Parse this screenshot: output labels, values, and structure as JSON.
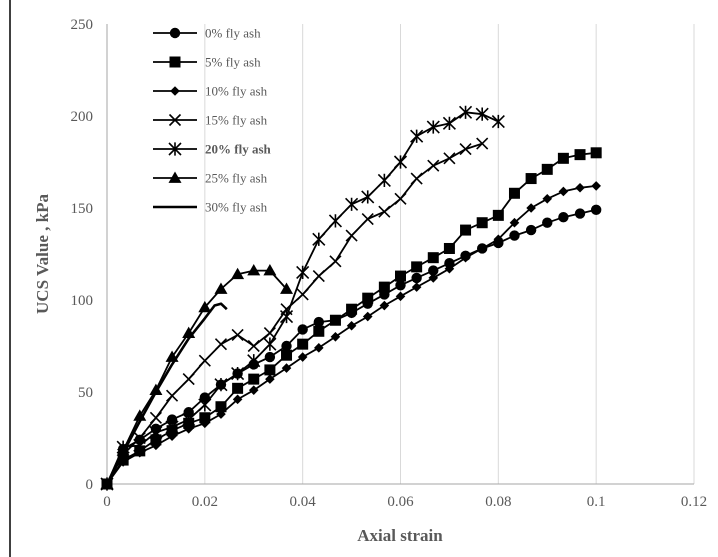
{
  "chart_data": {
    "type": "line",
    "title": "",
    "xlabel": "Axial strain",
    "ylabel": "UCS Value , kPa",
    "xlim": [
      0,
      0.12
    ],
    "ylim": [
      0,
      250
    ],
    "xticks": [
      "0",
      "0.02",
      "0.04",
      "0.06",
      "0.08",
      "0.1",
      "0.12"
    ],
    "yticks": [
      "0",
      "50",
      "100",
      "150",
      "200",
      "250"
    ],
    "grid": "vertical",
    "legend_position": "top-left",
    "series": [
      {
        "name": "0% fly ash",
        "marker": "circle",
        "bold": false,
        "x": [
          0,
          0.0033,
          0.0067,
          0.01,
          0.0133,
          0.0167,
          0.02,
          0.0233,
          0.0267,
          0.03,
          0.0333,
          0.0367,
          0.04,
          0.0433,
          0.0467,
          0.05,
          0.0533,
          0.0567,
          0.06,
          0.0633,
          0.0667,
          0.07,
          0.0733,
          0.0767,
          0.08,
          0.0833,
          0.0867,
          0.09,
          0.0933,
          0.0967,
          0.1
        ],
        "y": [
          0,
          19,
          24,
          30,
          35,
          39,
          47,
          54,
          60,
          65,
          69,
          75,
          84,
          88,
          89,
          93,
          98,
          103,
          108,
          112,
          116,
          120,
          124,
          128,
          131,
          135,
          138,
          142,
          145,
          147,
          149
        ]
      },
      {
        "name": "5% fly ash",
        "marker": "square",
        "bold": false,
        "x": [
          0,
          0.0033,
          0.0067,
          0.01,
          0.0133,
          0.0167,
          0.02,
          0.0233,
          0.0267,
          0.03,
          0.0333,
          0.0367,
          0.04,
          0.0433,
          0.0467,
          0.05,
          0.0533,
          0.0567,
          0.06,
          0.0633,
          0.0667,
          0.07,
          0.0733,
          0.0767,
          0.08,
          0.0833,
          0.0867,
          0.09,
          0.0933,
          0.0967,
          0.1
        ],
        "y": [
          0,
          13,
          18,
          24,
          29,
          33,
          36,
          42,
          52,
          57,
          62,
          70,
          76,
          83,
          89,
          95,
          101,
          107,
          113,
          118,
          123,
          128,
          138,
          142,
          146,
          158,
          166,
          171,
          177,
          179,
          180
        ]
      },
      {
        "name": "10% fly ash",
        "marker": "diamond",
        "bold": false,
        "x": [
          0,
          0.0033,
          0.0067,
          0.01,
          0.0133,
          0.0167,
          0.02,
          0.0233,
          0.0267,
          0.03,
          0.0333,
          0.0367,
          0.04,
          0.0433,
          0.0467,
          0.05,
          0.0533,
          0.0567,
          0.06,
          0.0633,
          0.0667,
          0.07,
          0.0733,
          0.0767,
          0.08,
          0.0833,
          0.0867,
          0.09,
          0.0933,
          0.0967,
          0.1
        ],
        "y": [
          0,
          12,
          17,
          21,
          26,
          30,
          33,
          38,
          46,
          51,
          57,
          63,
          69,
          74,
          80,
          86,
          91,
          97,
          102,
          107,
          112,
          117,
          123,
          128,
          133,
          142,
          150,
          155,
          159,
          161,
          162
        ]
      },
      {
        "name": "15% fly ash",
        "marker": "x",
        "bold": false,
        "x": [
          0,
          0.0033,
          0.0067,
          0.01,
          0.0133,
          0.0167,
          0.02,
          0.0233,
          0.0267,
          0.03,
          0.0333,
          0.0367,
          0.04,
          0.0433,
          0.0467,
          0.05,
          0.0533,
          0.0567,
          0.06,
          0.0633,
          0.0667,
          0.07,
          0.0733,
          0.0767
        ],
        "y": [
          0,
          16,
          25,
          36,
          48,
          57,
          67,
          76,
          81,
          75,
          82,
          95,
          103,
          113,
          121,
          135,
          144,
          148,
          155,
          166,
          173,
          177,
          182,
          185
        ]
      },
      {
        "name": "20% fly ash",
        "marker": "star",
        "bold": true,
        "x": [
          0,
          0.0033,
          0.0067,
          0.01,
          0.0133,
          0.0167,
          0.02,
          0.0233,
          0.0267,
          0.03,
          0.0333,
          0.0367,
          0.04,
          0.0433,
          0.0467,
          0.05,
          0.0533,
          0.0567,
          0.06,
          0.0633,
          0.0667,
          0.07,
          0.0733,
          0.0767,
          0.08
        ],
        "y": [
          0,
          20,
          21,
          28,
          31,
          35,
          43,
          54,
          60,
          67,
          76,
          91,
          115,
          133,
          143,
          152,
          156,
          165,
          175,
          189,
          194,
          196,
          202,
          201,
          197
        ]
      },
      {
        "name": "25% fly ash",
        "marker": "triangle",
        "bold": false,
        "x": [
          0,
          0.0033,
          0.0067,
          0.01,
          0.0133,
          0.0167,
          0.02,
          0.0233,
          0.0267,
          0.03,
          0.0333,
          0.0367
        ],
        "y": [
          0,
          18,
          37,
          51,
          69,
          82,
          96,
          106,
          114,
          116,
          116,
          106
        ]
      },
      {
        "name": "30% fly ash",
        "marker": "none",
        "bold": false,
        "x": [
          0,
          0.0033,
          0.0067,
          0.01,
          0.0133,
          0.0167,
          0.02,
          0.022,
          0.0233,
          0.0245
        ],
        "y": [
          0,
          17,
          34,
          50,
          65,
          79,
          90,
          97,
          98,
          95
        ]
      }
    ]
  }
}
